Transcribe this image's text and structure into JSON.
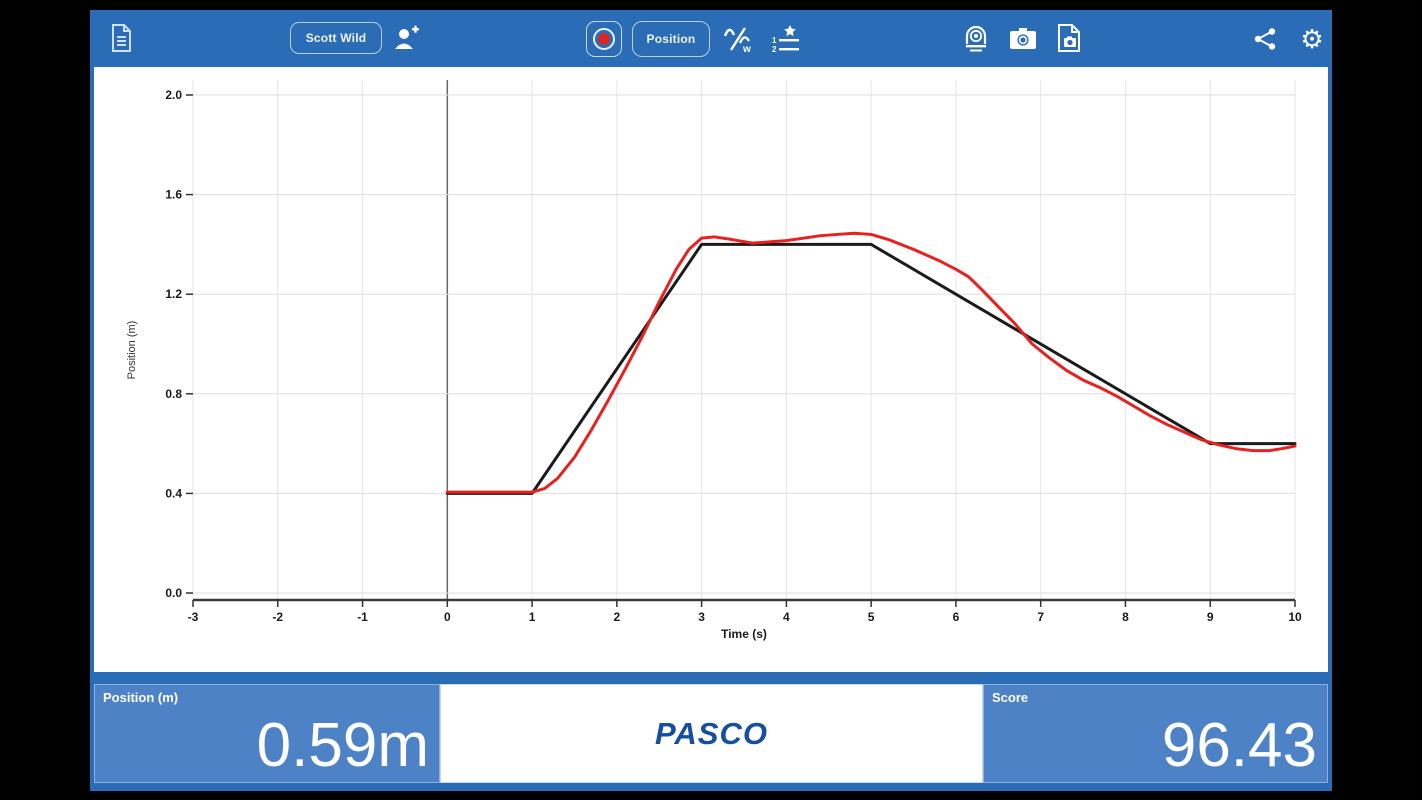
{
  "toolbar": {
    "user_button_label": "Scott Wild",
    "position_button_label": "Position",
    "record_button": "record",
    "icons": [
      "journal-file-icon",
      "add-user-icon",
      "record-icon",
      "wave-settings-icon",
      "scored-list-icon",
      "sensor-icon",
      "camera-snapshot-icon",
      "page-snapshot-icon",
      "share-icon",
      "gear-icon"
    ]
  },
  "chart_data": {
    "type": "line",
    "title": "",
    "xlabel": "Time (s)",
    "ylabel": "Position (m)",
    "xlim": [
      -3,
      10
    ],
    "ylim": [
      0,
      2.0
    ],
    "x_ticks": [
      -3,
      -2,
      -1,
      0,
      1,
      2,
      3,
      4,
      5,
      6,
      7,
      8,
      9,
      10
    ],
    "y_ticks": [
      0.0,
      0.4,
      0.8,
      1.2,
      1.6,
      2.0
    ],
    "grid": true,
    "legend": "none",
    "zero_axis_line": 0,
    "series": [
      {
        "name": "target-path",
        "color": "#1b1b1b",
        "width": 3,
        "points": [
          [
            0,
            0.4
          ],
          [
            1,
            0.4
          ],
          [
            3,
            1.4
          ],
          [
            5,
            1.4
          ],
          [
            9,
            0.6
          ],
          [
            10,
            0.6
          ]
        ]
      },
      {
        "name": "recorded-position",
        "color": "#e8201e",
        "width": 3,
        "points": [
          [
            0,
            0.405
          ],
          [
            0.6,
            0.405
          ],
          [
            1.0,
            0.405
          ],
          [
            1.15,
            0.42
          ],
          [
            1.3,
            0.46
          ],
          [
            1.5,
            0.545
          ],
          [
            1.7,
            0.655
          ],
          [
            1.9,
            0.775
          ],
          [
            2.1,
            0.9
          ],
          [
            2.3,
            1.03
          ],
          [
            2.5,
            1.17
          ],
          [
            2.7,
            1.3
          ],
          [
            2.85,
            1.38
          ],
          [
            3.0,
            1.425
          ],
          [
            3.15,
            1.43
          ],
          [
            3.35,
            1.42
          ],
          [
            3.6,
            1.405
          ],
          [
            3.8,
            1.41
          ],
          [
            4.0,
            1.415
          ],
          [
            4.2,
            1.425
          ],
          [
            4.4,
            1.435
          ],
          [
            4.6,
            1.44
          ],
          [
            4.8,
            1.445
          ],
          [
            5.0,
            1.44
          ],
          [
            5.2,
            1.42
          ],
          [
            5.5,
            1.38
          ],
          [
            5.8,
            1.335
          ],
          [
            6.0,
            1.3
          ],
          [
            6.15,
            1.27
          ],
          [
            6.3,
            1.22
          ],
          [
            6.5,
            1.15
          ],
          [
            6.7,
            1.08
          ],
          [
            6.9,
            1.0
          ],
          [
            7.1,
            0.945
          ],
          [
            7.3,
            0.895
          ],
          [
            7.5,
            0.855
          ],
          [
            7.7,
            0.825
          ],
          [
            7.9,
            0.79
          ],
          [
            8.1,
            0.75
          ],
          [
            8.3,
            0.71
          ],
          [
            8.5,
            0.675
          ],
          [
            8.7,
            0.645
          ],
          [
            8.9,
            0.615
          ],
          [
            9.1,
            0.595
          ],
          [
            9.3,
            0.58
          ],
          [
            9.5,
            0.572
          ],
          [
            9.7,
            0.572
          ],
          [
            9.85,
            0.58
          ],
          [
            10,
            0.59
          ]
        ]
      }
    ]
  },
  "displays": {
    "position": {
      "label": "Position (m)",
      "value": "0.59m"
    },
    "score": {
      "label": "Score",
      "value": "96.43"
    },
    "brand": "PASCO"
  },
  "colors": {
    "chrome_blue": "#2a6cb5",
    "panel_blue": "#4d82c6",
    "brand_blue": "#164f9e",
    "record_red": "#d62b24",
    "target_line": "#1b1b1b",
    "recorded_line": "#e8201e"
  }
}
